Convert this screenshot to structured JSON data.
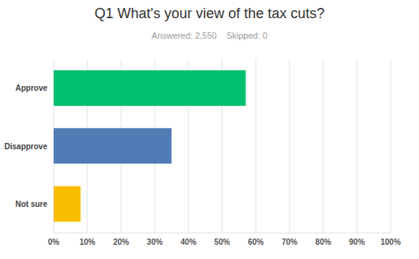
{
  "chart_data": {
    "type": "bar",
    "title": "Q1 What's your view of the tax cuts?",
    "subtitle": "Answered: 2,550    Skipped: 0",
    "orientation": "horizontal",
    "categories": [
      "Approve",
      "Disapprove",
      "Not sure"
    ],
    "values": [
      57,
      35,
      8
    ],
    "colors": [
      "#00bf6f",
      "#507cb6",
      "#f9be00"
    ],
    "xlim": [
      0,
      100
    ],
    "xticks": [
      {
        "value": 0,
        "label": "0%"
      },
      {
        "value": 10,
        "label": "10%"
      },
      {
        "value": 20,
        "label": "20%"
      },
      {
        "value": 30,
        "label": "30%"
      },
      {
        "value": 40,
        "label": "40%"
      },
      {
        "value": 50,
        "label": "50%"
      },
      {
        "value": 60,
        "label": "60%"
      },
      {
        "value": 70,
        "label": "70%"
      },
      {
        "value": 80,
        "label": "80%"
      },
      {
        "value": 90,
        "label": "90%"
      },
      {
        "value": 100,
        "label": "100%"
      }
    ],
    "grid": true
  }
}
